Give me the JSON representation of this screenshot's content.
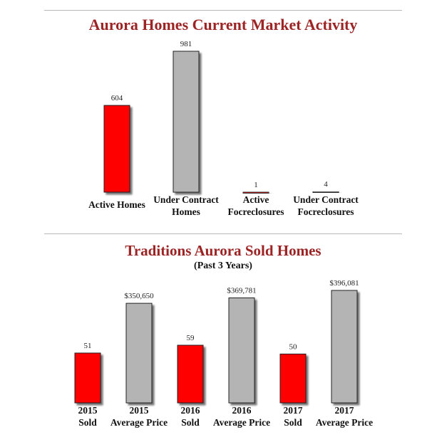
{
  "chart_data": [
    {
      "type": "bar",
      "title": "Aurora Homes Current Market Activity",
      "categories": [
        [
          "Active Homes"
        ],
        [
          "Under Contract",
          "Homes"
        ],
        [
          "Active",
          "Focreclosures"
        ],
        [
          "Under Contract",
          "Focreclosures"
        ]
      ],
      "values": [
        604,
        981,
        1,
        4
      ],
      "value_labels": [
        "604",
        "981",
        "1",
        "4"
      ],
      "colors": [
        "#ff0000",
        "#b4b4b4",
        "#ff0000",
        "#b4b4b4"
      ],
      "ylim": [
        0,
        981
      ],
      "grid": false,
      "legend": "none"
    },
    {
      "type": "bar",
      "title": "Traditions Aurora Sold Homes",
      "subtitle": "(Past 3 Years)",
      "categories": [
        [
          "2015",
          "Sold"
        ],
        [
          "2015",
          "Average Price"
        ],
        [
          "2016",
          "Sold"
        ],
        [
          "2016",
          "Average Price"
        ],
        [
          "2017",
          "Sold"
        ],
        [
          "2017",
          "Average Price"
        ]
      ],
      "values": [
        51,
        350650,
        59,
        369781,
        50,
        396081
      ],
      "value_labels": [
        "51",
        "$350,650",
        "59",
        "$369,781",
        "50",
        "$396,081"
      ],
      "colors": [
        "#ff0000",
        "#b4b4b4",
        "#ff0000",
        "#b4b4b4",
        "#ff0000",
        "#b4b4b4"
      ],
      "grid": false,
      "legend": "none"
    }
  ]
}
